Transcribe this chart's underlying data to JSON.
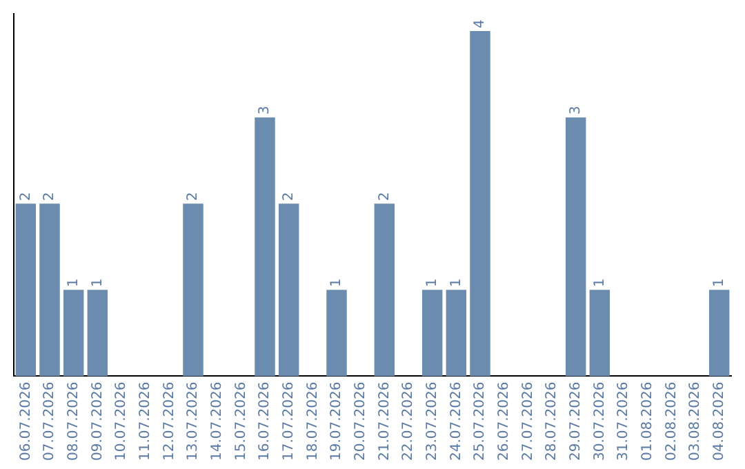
{
  "chart_data": {
    "type": "bar",
    "categories": [
      "06.07.2026",
      "07.07.2026",
      "08.07.2026",
      "09.07.2026",
      "10.07.2026",
      "11.07.2026",
      "12.07.2026",
      "13.07.2026",
      "14.07.2026",
      "15.07.2026",
      "16.07.2026",
      "17.07.2026",
      "18.07.2026",
      "19.07.2026",
      "20.07.2026",
      "21.07.2026",
      "22.07.2026",
      "23.07.2026",
      "24.07.2026",
      "25.07.2026",
      "26.07.2026",
      "27.07.2026",
      "28.07.2026",
      "29.07.2026",
      "30.07.2026",
      "31.07.2026",
      "01.08.2026",
      "02.08.2026",
      "03.08.2026",
      "04.08.2026"
    ],
    "values": [
      2,
      2,
      1,
      1,
      0,
      0,
      0,
      2,
      0,
      0,
      3,
      2,
      0,
      1,
      0,
      2,
      0,
      1,
      1,
      4,
      0,
      0,
      0,
      3,
      1,
      0,
      0,
      0,
      0,
      1
    ],
    "value_labels": [
      "2",
      "2",
      "1",
      "1",
      null,
      null,
      null,
      "2",
      null,
      null,
      "3",
      "2",
      null,
      "1",
      null,
      "2",
      null,
      "1",
      "1",
      "4",
      null,
      null,
      null,
      "3",
      "1",
      null,
      null,
      null,
      null,
      "1"
    ],
    "color": "#6b8cae",
    "ylim": [
      0,
      4.2
    ],
    "tick_labels": "x",
    "grid": false,
    "legend": false
  }
}
